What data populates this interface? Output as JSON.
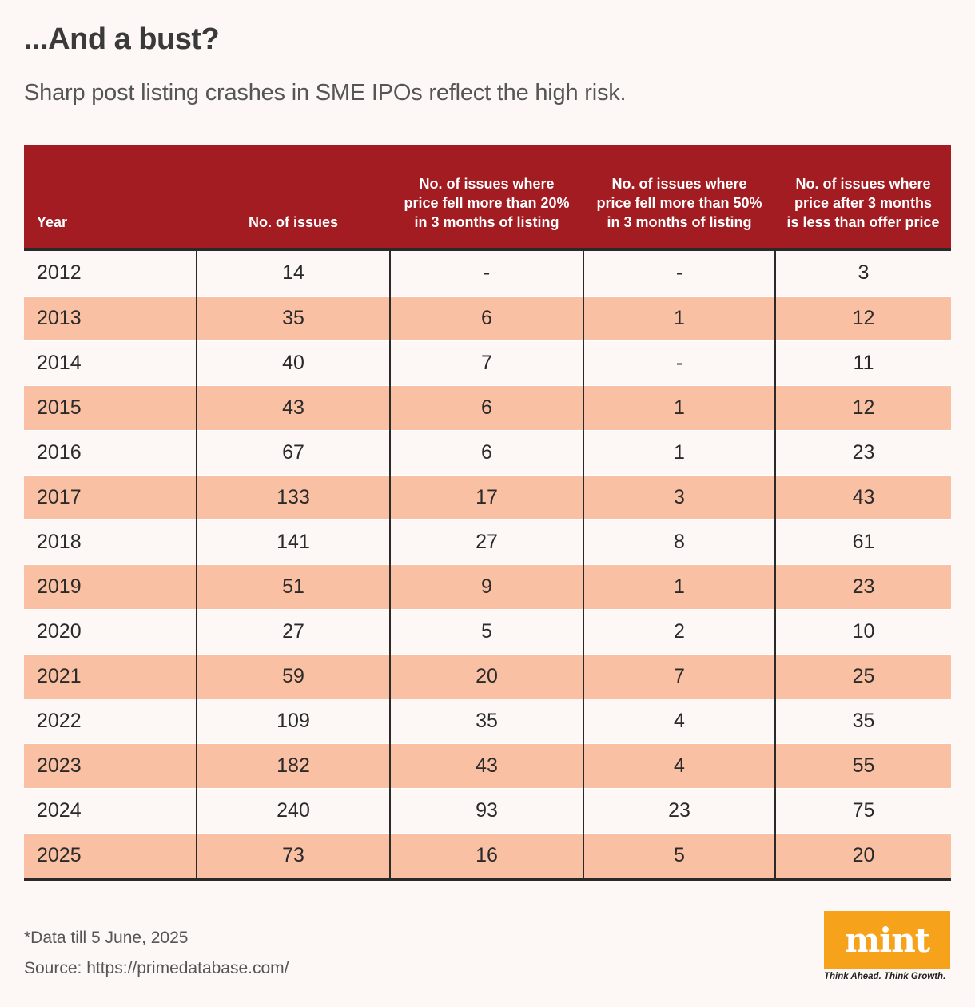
{
  "title": "...And a bust?",
  "subtitle": "Sharp post listing crashes in SME IPOs reflect the high risk.",
  "chart_data": {
    "type": "table",
    "columns": [
      "Year",
      "No. of issues",
      "No. of issues where price fell more than 20% in 3 months of listing",
      "No. of issues where price fell more than 50% in 3 months of listing",
      "No. of issues where price after 3 months is less than offer price"
    ],
    "rows": [
      [
        "2012",
        "14",
        "-",
        "-",
        "3"
      ],
      [
        "2013",
        "35",
        "6",
        "1",
        "12"
      ],
      [
        "2014",
        "40",
        "7",
        "-",
        "11"
      ],
      [
        "2015",
        "43",
        "6",
        "1",
        "12"
      ],
      [
        "2016",
        "67",
        "6",
        "1",
        "23"
      ],
      [
        "2017",
        "133",
        "17",
        "3",
        "43"
      ],
      [
        "2018",
        "141",
        "27",
        "8",
        "61"
      ],
      [
        "2019",
        "51",
        "9",
        "1",
        "23"
      ],
      [
        "2020",
        "27",
        "5",
        "2",
        "10"
      ],
      [
        "2021",
        "59",
        "20",
        "7",
        "25"
      ],
      [
        "2022",
        "109",
        "35",
        "4",
        "35"
      ],
      [
        "2023",
        "182",
        "43",
        "4",
        "55"
      ],
      [
        "2024",
        "240",
        "93",
        "23",
        "75"
      ],
      [
        "2025",
        "73",
        "16",
        "5",
        "20"
      ]
    ]
  },
  "footnote": "*Data till 5 June, 2025",
  "source": "Source: https://primedatabase.com/",
  "logo": {
    "text": "mint",
    "tagline": "Think Ahead. Think Growth."
  },
  "colors": {
    "header_bg": "#a21c22",
    "stripe": "#f9c0a3",
    "logo_bg": "#f7a21b"
  }
}
